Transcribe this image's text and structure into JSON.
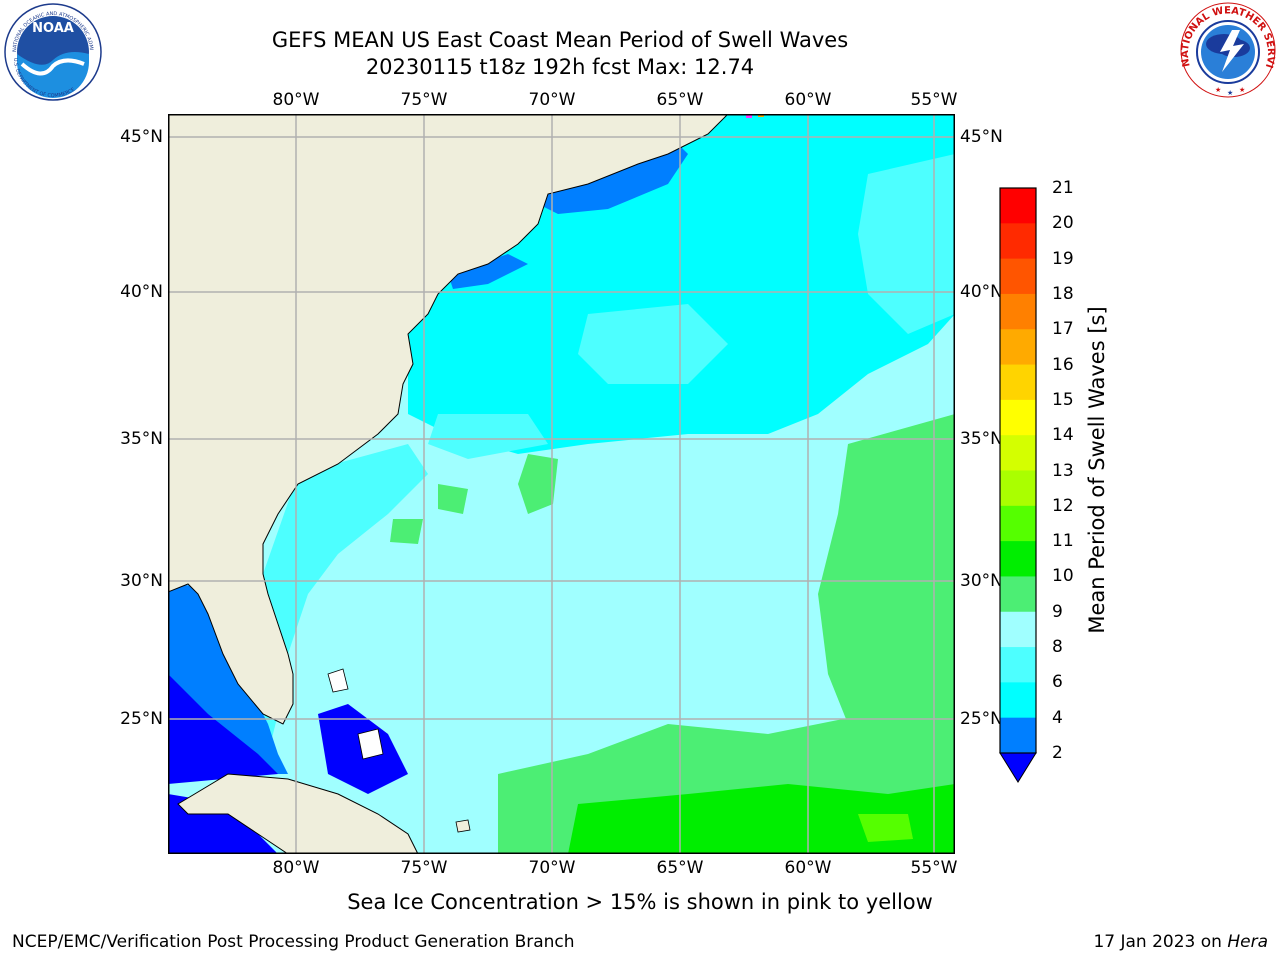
{
  "title": {
    "line1": "GEFS MEAN US East Coast Mean Period of Swell Waves",
    "line2": "20230115 t18z 192h fcst   Max: 12.74"
  },
  "axes": {
    "longitudes": [
      "80°W",
      "75°W",
      "70°W",
      "65°W",
      "60°W",
      "55°W"
    ],
    "latitudes": [
      "45°N",
      "40°N",
      "35°N",
      "30°N",
      "25°N"
    ]
  },
  "colorbar": {
    "label": "Mean Period of Swell Waves [s]",
    "ticks": [
      "21",
      "20",
      "19",
      "18",
      "17",
      "16",
      "15",
      "14",
      "13",
      "12",
      "11",
      "10",
      "9",
      "8",
      "6",
      "4",
      "2"
    ],
    "colors_top_to_bottom": [
      "#ff0000",
      "#ff2a00",
      "#ff5500",
      "#ff8000",
      "#ffaa00",
      "#ffd400",
      "#ffff00",
      "#d4ff00",
      "#aaff00",
      "#55ff00",
      "#00ee00",
      "#4cee74",
      "#a0ffff",
      "#4dffff",
      "#00ffff",
      "#007fff"
    ],
    "under_color": "#0000ff"
  },
  "map_colors": {
    "land": "#efeedc",
    "ocean_9s": "#a0ffff",
    "ocean_8s": "#4dffff",
    "ocean_6s": "#00ffff",
    "ocean_4s": "#007fff",
    "ocean_2s": "#0000ff",
    "green_10s": "#4cee74",
    "green_11s": "#00ee00",
    "green_12s": "#55ff00",
    "grid": "#b0b0b0"
  },
  "note": "Sea Ice Concentration > 15% is shown in pink to yellow",
  "footer": {
    "left": "NCEP/EMC/Verification Post Processing Product Generation Branch",
    "date": "17 Jan 2023 on ",
    "host": "Hera"
  },
  "logos": {
    "noaa_text": "NOAA",
    "noaa_ring_top": "NATIONAL OCEANIC AND ATMOSPHERIC ADMINISTRATION",
    "noaa_ring_bottom": "U.S. DEPARTMENT OF COMMERCE",
    "nws_ring": "NATIONAL WEATHER SERVICE"
  }
}
